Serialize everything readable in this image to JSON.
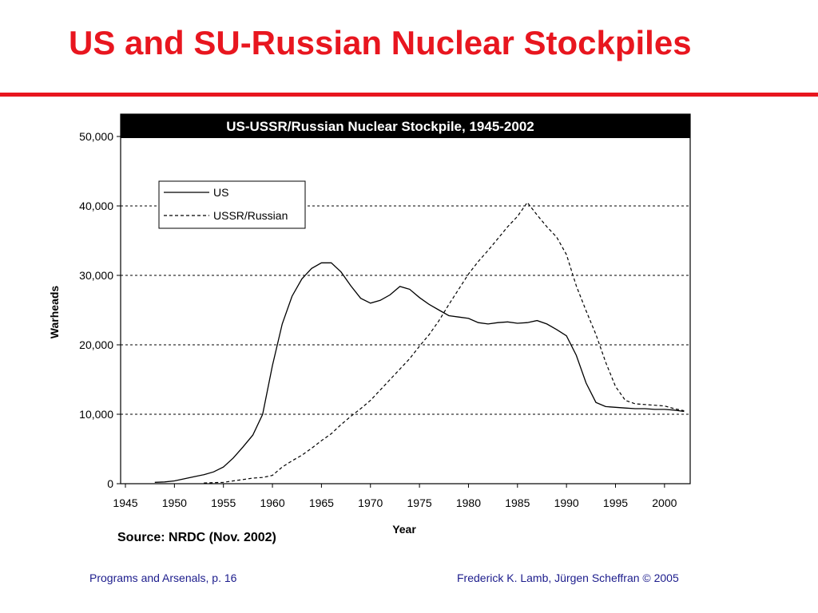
{
  "slide": {
    "title": "US and SU-Russian Nuclear Stockpiles",
    "source": "Source: NRDC (Nov. 2002)",
    "footer_left": "Programs and Arsenals, p. 16",
    "footer_right": "Frederick K. Lamb, Jürgen Scheffran © 2005",
    "accent_color": "#e8161f",
    "footer_color": "#1c1c8c"
  },
  "chart_data": {
    "type": "line",
    "title": "US-USSR/Russian Nuclear Stockpile, 1945-2002",
    "xlabel": "Year",
    "ylabel": "Warheads",
    "xlim": [
      1945,
      2003
    ],
    "ylim": [
      0,
      50000
    ],
    "x_ticks": [
      "1945",
      "1950",
      "1955",
      "1960",
      "1965",
      "1970",
      "1975",
      "1980",
      "1985",
      "1990",
      "1995",
      "2000"
    ],
    "y_ticks": [
      "0",
      "10,000",
      "20,000",
      "30,000",
      "40,000",
      "50,000"
    ],
    "grid": "horizontal dashed",
    "legend_position": "top-left",
    "series": [
      {
        "name": "US",
        "style": "solid",
        "points": [
          [
            1948,
            200
          ],
          [
            1949,
            250
          ],
          [
            1950,
            400
          ],
          [
            1951,
            700
          ],
          [
            1952,
            1000
          ],
          [
            1953,
            1300
          ],
          [
            1954,
            1700
          ],
          [
            1955,
            2400
          ],
          [
            1956,
            3700
          ],
          [
            1957,
            5300
          ],
          [
            1958,
            7000
          ],
          [
            1959,
            10000
          ],
          [
            1960,
            17000
          ],
          [
            1961,
            23000
          ],
          [
            1962,
            27000
          ],
          [
            1963,
            29500
          ],
          [
            1964,
            31000
          ],
          [
            1965,
            31800
          ],
          [
            1966,
            31800
          ],
          [
            1967,
            30500
          ],
          [
            1968,
            28500
          ],
          [
            1969,
            26700
          ],
          [
            1970,
            26000
          ],
          [
            1971,
            26400
          ],
          [
            1972,
            27200
          ],
          [
            1973,
            28400
          ],
          [
            1974,
            28000
          ],
          [
            1975,
            26800
          ],
          [
            1976,
            25800
          ],
          [
            1977,
            25000
          ],
          [
            1978,
            24200
          ],
          [
            1979,
            24000
          ],
          [
            1980,
            23800
          ],
          [
            1981,
            23200
          ],
          [
            1982,
            23000
          ],
          [
            1983,
            23200
          ],
          [
            1984,
            23300
          ],
          [
            1985,
            23100
          ],
          [
            1986,
            23200
          ],
          [
            1987,
            23500
          ],
          [
            1988,
            23000
          ],
          [
            1989,
            22200
          ],
          [
            1990,
            21300
          ],
          [
            1991,
            18500
          ],
          [
            1992,
            14500
          ],
          [
            1993,
            11700
          ],
          [
            1994,
            11100
          ],
          [
            1995,
            11000
          ],
          [
            1996,
            10900
          ],
          [
            1997,
            10800
          ],
          [
            1998,
            10800
          ],
          [
            1999,
            10700
          ],
          [
            2000,
            10700
          ],
          [
            2001,
            10600
          ],
          [
            2002,
            10400
          ]
        ]
      },
      {
        "name": "USSR/Russian",
        "style": "dashed",
        "points": [
          [
            1953,
            100
          ],
          [
            1955,
            200
          ],
          [
            1956,
            400
          ],
          [
            1957,
            600
          ],
          [
            1958,
            800
          ],
          [
            1959,
            900
          ],
          [
            1960,
            1200
          ],
          [
            1961,
            2400
          ],
          [
            1962,
            3300
          ],
          [
            1963,
            4100
          ],
          [
            1964,
            5100
          ],
          [
            1965,
            6200
          ],
          [
            1966,
            7200
          ],
          [
            1967,
            8500
          ],
          [
            1968,
            9700
          ],
          [
            1969,
            10800
          ],
          [
            1970,
            12000
          ],
          [
            1971,
            13500
          ],
          [
            1972,
            15000
          ],
          [
            1973,
            16500
          ],
          [
            1974,
            18000
          ],
          [
            1975,
            19800
          ],
          [
            1976,
            21500
          ],
          [
            1977,
            23500
          ],
          [
            1978,
            25800
          ],
          [
            1979,
            28000
          ],
          [
            1980,
            30200
          ],
          [
            1981,
            32000
          ],
          [
            1982,
            33600
          ],
          [
            1983,
            35300
          ],
          [
            1984,
            37000
          ],
          [
            1985,
            38500
          ],
          [
            1986,
            40500
          ],
          [
            1987,
            38700
          ],
          [
            1988,
            37000
          ],
          [
            1989,
            35500
          ],
          [
            1990,
            33000
          ],
          [
            1991,
            28500
          ],
          [
            1992,
            24900
          ],
          [
            1993,
            21500
          ],
          [
            1994,
            17500
          ],
          [
            1995,
            14000
          ],
          [
            1996,
            12000
          ],
          [
            1997,
            11500
          ],
          [
            1998,
            11400
          ],
          [
            1999,
            11300
          ],
          [
            2000,
            11200
          ],
          [
            2001,
            10800
          ],
          [
            2002,
            10500
          ]
        ]
      }
    ],
    "colors": {
      "line": "#000000",
      "grid": "#000000",
      "title_bar": "#000000",
      "title_text": "#ffffff"
    }
  }
}
